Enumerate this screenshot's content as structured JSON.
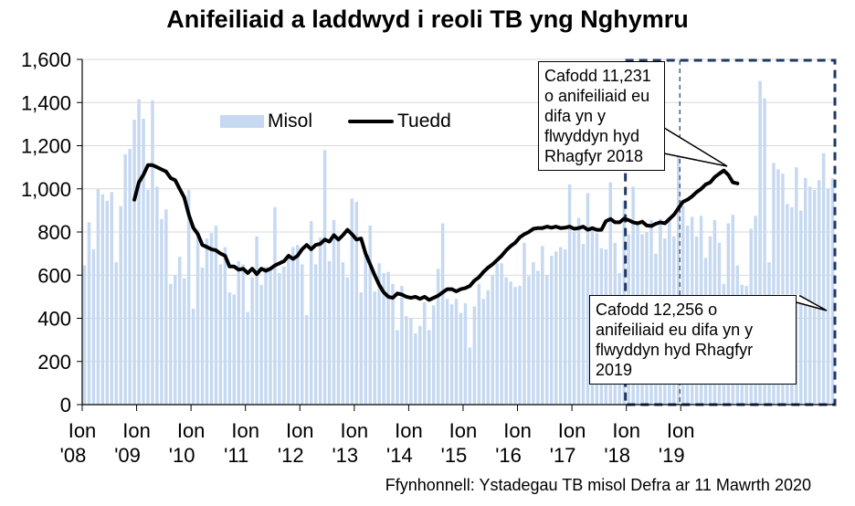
{
  "chart_data": {
    "type": "bar",
    "title": "Anifeiliaid a laddwyd i reoli TB yng Nghymru",
    "xlabel": "",
    "ylabel": "",
    "ylim": [
      0,
      1600
    ],
    "yticks": [
      "0",
      "200",
      "400",
      "600",
      "800",
      "1,000",
      "1,200",
      "1,400",
      "1,600"
    ],
    "ytick_values": [
      0,
      200,
      400,
      600,
      800,
      1000,
      1200,
      1400,
      1600
    ],
    "xtick_labels": [
      {
        "top": "Ion",
        "bottom": "'08"
      },
      {
        "top": "Ion",
        "bottom": "'09"
      },
      {
        "top": "Ion",
        "bottom": "'10"
      },
      {
        "top": "Ion",
        "bottom": "'11"
      },
      {
        "top": "Ion",
        "bottom": "'12"
      },
      {
        "top": "Ion",
        "bottom": "'13"
      },
      {
        "top": "Ion",
        "bottom": "'14"
      },
      {
        "top": "Ion",
        "bottom": "'15"
      },
      {
        "top": "Ion",
        "bottom": "'16"
      },
      {
        "top": "Ion",
        "bottom": "'17"
      },
      {
        "top": "Ion",
        "bottom": "'18"
      },
      {
        "top": "Ion",
        "bottom": "'19"
      }
    ],
    "grid": true,
    "legend_position": "top-left",
    "series": [
      {
        "name": "Misol",
        "type": "bar",
        "color": "#c6d9f1",
        "values": [
          645,
          845,
          720,
          1000,
          975,
          945,
          985,
          660,
          920,
          1160,
          1185,
          1320,
          1415,
          1325,
          995,
          1410,
          1010,
          860,
          905,
          560,
          600,
          685,
          585,
          995,
          445,
          810,
          635,
          770,
          795,
          830,
          650,
          730,
          520,
          510,
          665,
          650,
          430,
          590,
          780,
          555,
          640,
          630,
          915,
          610,
          640,
          685,
          730,
          740,
          650,
          415,
          850,
          650,
          775,
          1180,
          665,
          855,
          780,
          660,
          590,
          955,
          940,
          520,
          700,
          830,
          525,
          655,
          610,
          615,
          560,
          345,
          550,
          410,
          400,
          330,
          365,
          475,
          345,
          460,
          630,
          840,
          490,
          465,
          490,
          425,
          470,
          265,
          455,
          560,
          490,
          530,
          600,
          655,
          655,
          590,
          570,
          545,
          550,
          750,
          595,
          660,
          620,
          735,
          600,
          690,
          710,
          730,
          720,
          1020,
          800,
          865,
          745,
          980,
          815,
          795,
          725,
          720,
          1030,
          750,
          610,
          945,
          790,
          1010,
          840,
          790,
          800,
          855,
          700,
          860,
          770,
          860,
          780,
          1150,
          920,
          830,
          870,
          780,
          875,
          680,
          780,
          855,
          750,
          560,
          840,
          880,
          645,
          555,
          550,
          815,
          875,
          1500,
          1420,
          660,
          1120,
          1090,
          1070,
          930,
          915,
          1100,
          900,
          1050,
          1010,
          995,
          1040,
          1165,
          1000,
          1050
        ]
      },
      {
        "name": "Tuedd",
        "type": "line",
        "color": "#000000",
        "start_index": 11,
        "values": [
          950,
          1030,
          1065,
          1110,
          1110,
          1100,
          1090,
          1080,
          1050,
          1040,
          1000,
          960,
          880,
          820,
          790,
          740,
          730,
          720,
          715,
          700,
          690,
          640,
          640,
          625,
          630,
          610,
          630,
          605,
          630,
          620,
          630,
          645,
          655,
          665,
          690,
          675,
          690,
          720,
          740,
          720,
          740,
          745,
          765,
          755,
          785,
          765,
          785,
          810,
          790,
          765,
          770,
          700,
          650,
          600,
          555,
          520,
          500,
          495,
          515,
          510,
          500,
          495,
          500,
          490,
          500,
          485,
          495,
          505,
          520,
          535,
          535,
          525,
          535,
          540,
          550,
          575,
          590,
          615,
          635,
          650,
          670,
          690,
          715,
          735,
          750,
          775,
          790,
          800,
          815,
          818,
          818,
          825,
          820,
          825,
          818,
          820,
          825,
          815,
          818,
          825,
          810,
          818,
          810,
          810,
          850,
          860,
          845,
          845,
          862,
          855,
          845,
          840,
          848,
          830,
          828,
          838,
          845,
          840,
          860,
          880,
          910,
          940,
          950,
          965,
          985,
          1000,
          1020,
          1030,
          1055,
          1070,
          1085,
          1065,
          1030,
          1025
        ]
      }
    ],
    "annotations": [
      {
        "id": "2018",
        "text": "Cafodd 11,231 o anifeiliaid eu difa yn y flwyddyn hyd Rhagfyr 2018"
      },
      {
        "id": "2019",
        "text": "Cafodd 12,256 o anifeiliaid eu difa yn y flwyddyn hyd  Rhagfyr 2019"
      }
    ]
  },
  "source": "Ffynhonnell: Ystadegau TB misol Defra ar 11 Mawrth 2020"
}
